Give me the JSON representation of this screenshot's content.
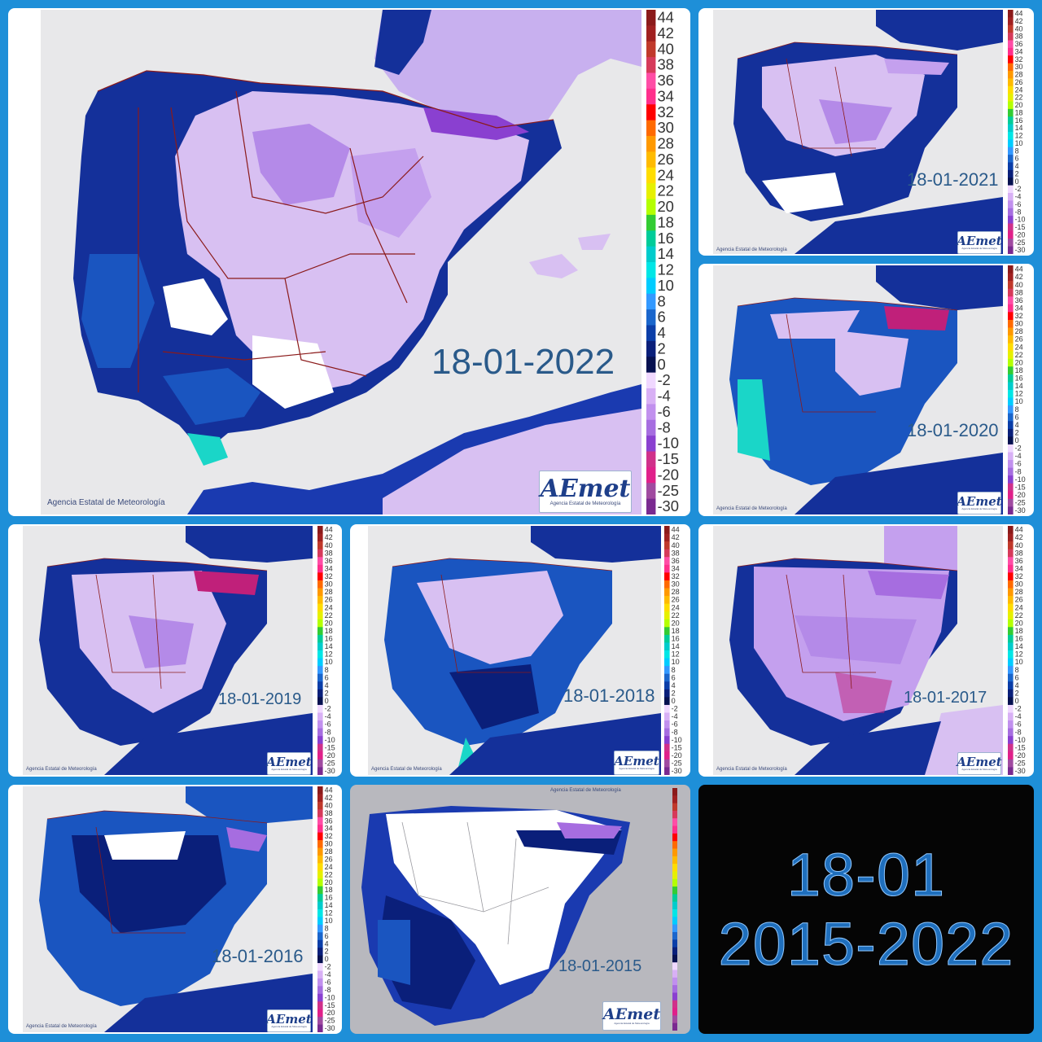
{
  "credit_text": "Agencia Estatal de Meteorología",
  "logo": {
    "word": "AEmet",
    "sub": "Agencia Estatal de Meteorología"
  },
  "legend": {
    "labels": [
      "44",
      "42",
      "40",
      "38",
      "36",
      "34",
      "32",
      "30",
      "28",
      "26",
      "24",
      "22",
      "20",
      "18",
      "16",
      "14",
      "12",
      "10",
      "8",
      "6",
      "4",
      "2",
      "0",
      "-2",
      "-4",
      "-6",
      "-8",
      "-10",
      "-15",
      "-20",
      "-25",
      "-30"
    ],
    "colors": [
      "#8b1a1a",
      "#a02020",
      "#c0392b",
      "#d63a5a",
      "#ff4da6",
      "#ff2f8c",
      "#ff0000",
      "#ff6a00",
      "#ff9900",
      "#ffbb00",
      "#ffdd00",
      "#e6f000",
      "#b4ff00",
      "#33cc33",
      "#00cc99",
      "#00cccc",
      "#00e6e6",
      "#00ccff",
      "#3399ff",
      "#1a66cc",
      "#0b3ea8",
      "#0a1f7a",
      "#061150",
      "#f0d8ff",
      "#d8b0f5",
      "#c190ee",
      "#a66de0",
      "#8a40d0",
      "#d0308a",
      "#e0208a",
      "#a04aa0",
      "#7a2a90"
    ]
  },
  "panels": [
    {
      "date": "18-01-2022",
      "theme": "cold"
    },
    {
      "date": "18-01-2021",
      "theme": "cold"
    },
    {
      "date": "18-01-2020",
      "theme": "mild"
    },
    {
      "date": "18-01-2019",
      "theme": "cold"
    },
    {
      "date": "18-01-2018",
      "theme": "mild"
    },
    {
      "date": "18-01-2017",
      "theme": "very-cold"
    },
    {
      "date": "18-01-2016",
      "theme": "mild"
    },
    {
      "date": "18-01-2015",
      "theme": "white"
    }
  ],
  "summary": {
    "line1": "18-01",
    "line2": "2015-2022"
  },
  "colors": {
    "background": "#1e8fd8",
    "sea": "#e8e8ea",
    "deep_blue": "#0a1f7a",
    "blue": "#1a55c0",
    "cyan": "#1ad6c8",
    "lavender": "#d8c0f2",
    "violet": "#a66de0",
    "magenta": "#c0207a",
    "border_lines": "#8b1a1a"
  }
}
